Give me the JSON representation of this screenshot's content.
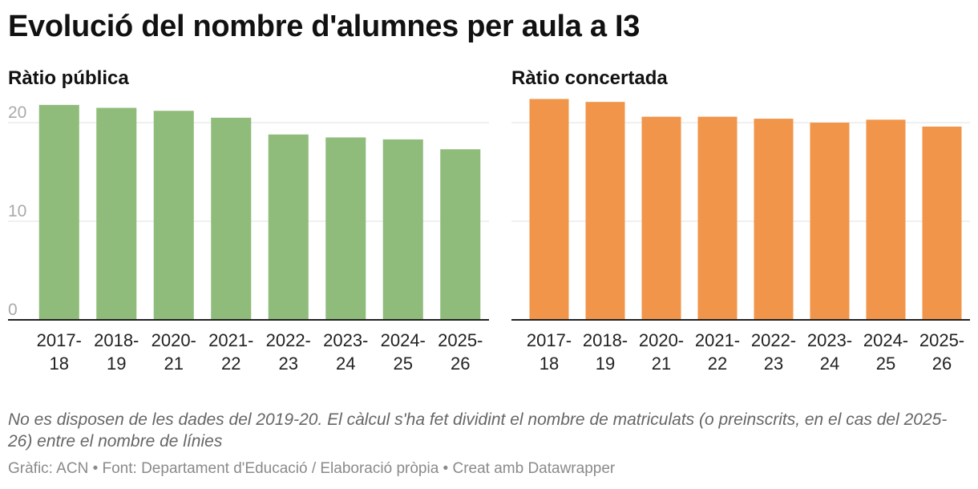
{
  "title": "Evolució del nombre d'alumnes per aula a I3",
  "note": "No es disposen de les dades del 2019-20. El càlcul s'ha fet dividint el nombre de matriculats (o preinscrits, en el cas del 2025-26) entre el nombre de línies",
  "footer": "Gràfic: ACN • Font: Departament d'Educació / Elaboració pròpia • Creat amb Datawrapper",
  "chart_data": [
    {
      "type": "bar",
      "title": "Ràtio pública",
      "color": "#8fbc7b",
      "categories": [
        [
          "2017-",
          "18"
        ],
        [
          "2018-",
          "19"
        ],
        [
          "2020-",
          "21"
        ],
        [
          "2021-",
          "22"
        ],
        [
          "2022-",
          "23"
        ],
        [
          "2023-",
          "24"
        ],
        [
          "2024-",
          "25"
        ],
        [
          "2025-",
          "26"
        ]
      ],
      "values": [
        21.8,
        21.5,
        21.2,
        20.5,
        18.8,
        18.5,
        18.3,
        17.3
      ],
      "yticks": [
        "0",
        "10",
        "20"
      ],
      "ylim": [
        0,
        20
      ],
      "grid": true
    },
    {
      "type": "bar",
      "title": "Ràtio concertada",
      "color": "#f0954a",
      "categories": [
        [
          "2017-",
          "18"
        ],
        [
          "2018-",
          "19"
        ],
        [
          "2020-",
          "21"
        ],
        [
          "2021-",
          "22"
        ],
        [
          "2022-",
          "23"
        ],
        [
          "2023-",
          "24"
        ],
        [
          "2024-",
          "25"
        ],
        [
          "2025-",
          "26"
        ]
      ],
      "values": [
        22.4,
        22.1,
        20.6,
        20.6,
        20.4,
        20.0,
        20.3,
        19.6
      ],
      "yticks": [
        "0",
        "10",
        "20"
      ],
      "ylim": [
        0,
        20
      ],
      "grid": true
    }
  ]
}
